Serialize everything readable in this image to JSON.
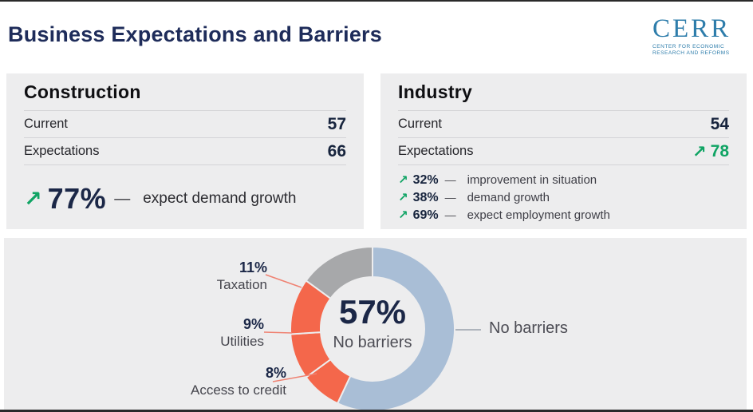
{
  "page": {
    "title": "Business Expectations and Barriers"
  },
  "icons": {
    "trend_up": "↗"
  },
  "logo": {
    "name": "CERR",
    "subtitle_line1": "CENTER FOR ECONOMIC",
    "subtitle_line2": "RESEARCH AND REFORMS"
  },
  "panels": {
    "construction": {
      "title": "Construction",
      "rows": [
        {
          "label": "Current",
          "value": "57"
        },
        {
          "label": "Expectations",
          "value": "66"
        }
      ],
      "highlight": {
        "pct": "77%",
        "dash": "—",
        "text": "expect demand growth"
      }
    },
    "industry": {
      "title": "Industry",
      "rows": [
        {
          "label": "Current",
          "value": "54"
        },
        {
          "label": "Expectations",
          "value": "78"
        }
      ],
      "bullets": [
        {
          "pct": "32%",
          "dash": "—",
          "text": "improvement in situation"
        },
        {
          "pct": "38%",
          "dash": "—",
          "text": "demand growth"
        },
        {
          "pct": "69%",
          "dash": "—",
          "text": "expect employment growth"
        }
      ]
    }
  },
  "chart_data": {
    "type": "pie",
    "subtype": "donut",
    "direction": "clockwise",
    "start_angle_deg": 0,
    "center": {
      "value": "57%",
      "label": "No barriers"
    },
    "segments": [
      {
        "label": "No barriers",
        "value": 57,
        "color": "#a9bed6"
      },
      {
        "label": "Access to credit",
        "value": 8,
        "color": "#f4674b"
      },
      {
        "label": "Utilities",
        "value": 9,
        "color": "#f4674b"
      },
      {
        "label": "Taxation",
        "value": 11,
        "color": "#f4674b"
      },
      {
        "label": "",
        "value": 15,
        "color": "#a7a8aa"
      }
    ],
    "callouts_left": [
      {
        "pct": "11%",
        "label": "Taxation"
      },
      {
        "pct": "9%",
        "label": "Utilities"
      },
      {
        "pct": "8%",
        "label": "Access to credit"
      }
    ],
    "callout_right": {
      "label": "No barriers"
    }
  },
  "colors": {
    "accent_green": "#10a464",
    "navy": "#1b2747",
    "card_bg": "#ededee",
    "donut_blue": "#a9bed6",
    "donut_orange": "#f4674b",
    "donut_gray": "#a7a8aa",
    "leader_coral": "#ef8272",
    "leader_gray": "#99a1ab"
  }
}
